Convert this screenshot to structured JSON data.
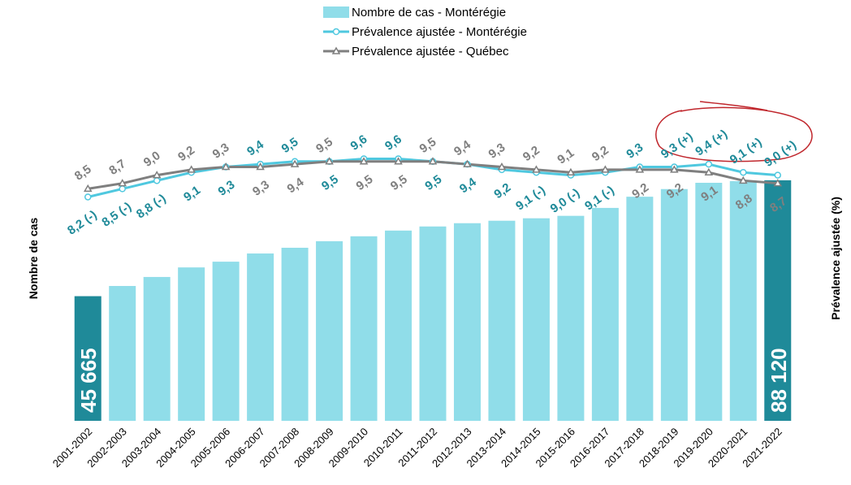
{
  "chart_data": {
    "type": "bar",
    "categories": [
      "2001-2002",
      "2002-2003",
      "2003-2004",
      "2004-2005",
      "2005-2006",
      "2006-2007",
      "2007-2008",
      "2008-2009",
      "2009-2010",
      "2010-2011",
      "2011-2012",
      "2012-2013",
      "2013-2014",
      "2014-2015",
      "2015-2016",
      "2016-2017",
      "2017-2018",
      "2018-2019",
      "2019-2020",
      "2020-2021",
      "2021-2022"
    ],
    "ylabel": "Nombre de cas",
    "y2label": "Prévalence ajustée (%)",
    "ylim": [
      0,
      100000
    ],
    "y2lim": [
      0,
      10
    ],
    "series": [
      {
        "name": "Nombre de cas - Montérégie",
        "type": "bar",
        "color": "#90dde9",
        "highlight_color": "#1f8a99",
        "values": [
          45665,
          49400,
          52700,
          56200,
          58300,
          61300,
          63400,
          65800,
          67600,
          69700,
          71200,
          72400,
          73300,
          74200,
          75100,
          78000,
          82100,
          84900,
          87200,
          87800,
          88120
        ],
        "value_labels": [
          "45 665",
          null,
          null,
          null,
          null,
          null,
          null,
          null,
          null,
          null,
          null,
          null,
          null,
          null,
          null,
          null,
          null,
          null,
          null,
          null,
          "88 120"
        ]
      },
      {
        "name": "Prévalence ajustée - Montérégie",
        "type": "line",
        "axis": "y2",
        "color": "#4fc8df",
        "label_color": "#1f8a99",
        "marker": "circle",
        "values": [
          8.2,
          8.5,
          8.8,
          9.1,
          9.3,
          9.4,
          9.5,
          9.5,
          9.6,
          9.6,
          9.5,
          9.4,
          9.2,
          9.1,
          9.0,
          9.1,
          9.3,
          9.3,
          9.4,
          9.1,
          9.0
        ],
        "value_labels": [
          "8,2 (-)",
          "8,5 (-)",
          "8,8 (-)",
          "9,1",
          "9,3",
          "9,4",
          "9,5",
          "9,5",
          "9,6",
          "9,6",
          "9,5",
          "9,4",
          "9,2",
          "9,1 (-)",
          "9,0 (-)",
          "9,1 (-)",
          "9,3",
          "9,3 (+)",
          "9,4 (+)",
          "9,1 (+)",
          "9,0 (+)"
        ]
      },
      {
        "name": "Prévalence ajustée - Québec",
        "type": "line",
        "axis": "y2",
        "color": "#7f7f7f",
        "label_color": "#7f7f7f",
        "marker": "triangle",
        "values": [
          8.5,
          8.7,
          9.0,
          9.2,
          9.3,
          9.3,
          9.4,
          9.5,
          9.5,
          9.5,
          9.5,
          9.4,
          9.3,
          9.2,
          9.1,
          9.2,
          9.2,
          9.2,
          9.1,
          8.8,
          8.7
        ],
        "value_labels": [
          "8,5",
          "8,7",
          "9,0",
          "9,2",
          "9,3",
          "9,3",
          "9,4",
          "9,5",
          "9,5",
          "9,5",
          "9,5",
          "9,4",
          "9,3",
          "9,2",
          "9,1",
          "9,2",
          "9,2",
          "9,2",
          "9,1",
          "8,8",
          "8,7"
        ]
      }
    ]
  }
}
